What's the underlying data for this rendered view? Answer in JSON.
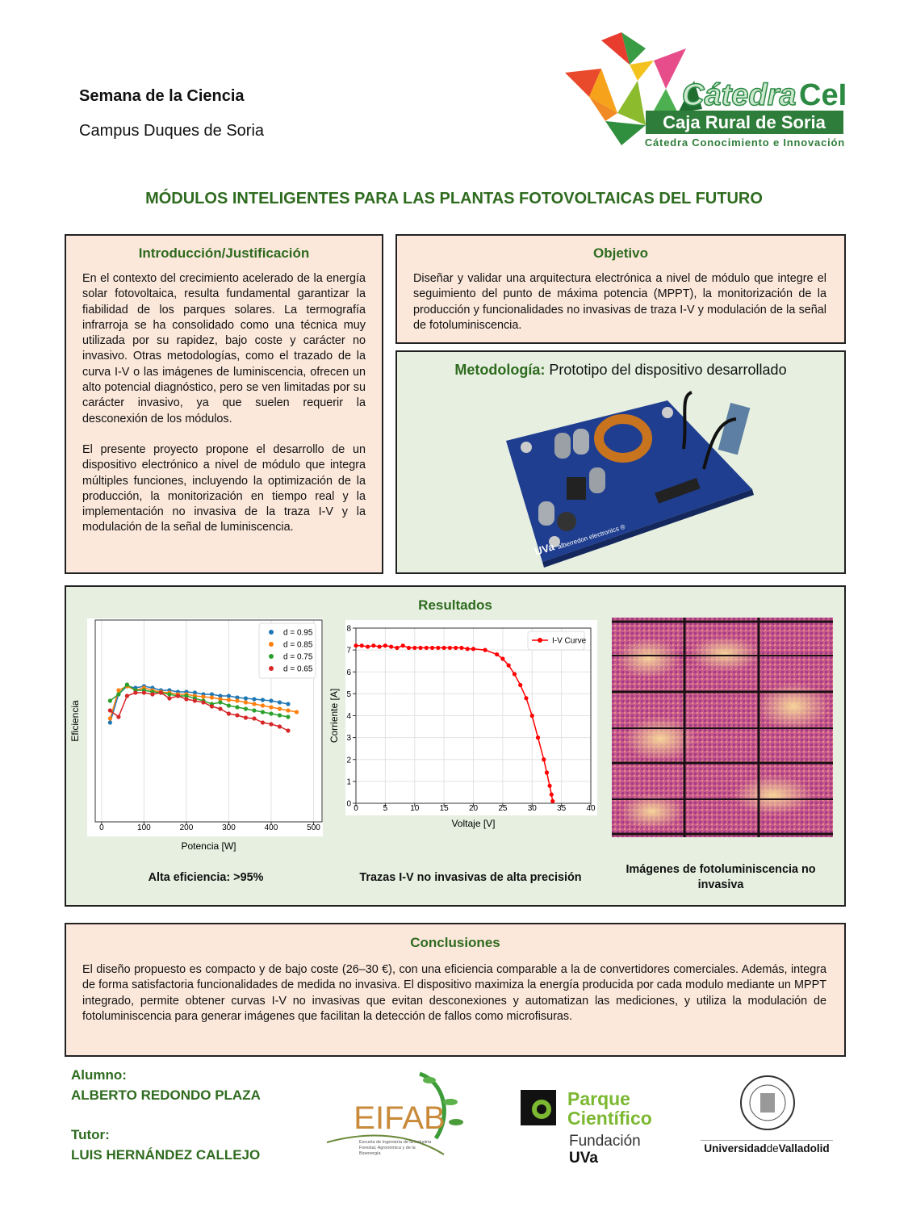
{
  "header": {
    "event": "Semana de la Ciencia",
    "campus": "Campus Duques de Soria"
  },
  "logo": {
    "word": "Cátedra",
    "initials": "CeI",
    "bank": "Caja Rural de Soria",
    "tagline": "Cátedra Conocimiento e Innovación"
  },
  "title": "MÓDULOS INTELIGENTES PARA LAS PLANTAS FOTOVOLTAICAS DEL FUTURO",
  "introduction": {
    "heading": "Introducción/Justificación",
    "paragraphs": [
      "En el contexto del crecimiento acelerado de la energía solar fotovoltaica, resulta fundamental garantizar la fiabilidad de los parques solares. La termografía infrarroja se ha consolidado como una técnica muy utilizada por su rapidez, bajo coste y carácter no invasivo. Otras metodologías, como el trazado de la curva I-V o las imágenes de luminiscencia, ofrecen un alto potencial diagnóstico, pero se ven limitadas por su carácter invasivo, ya que suelen requerir la desconexión de los módulos.",
      "El presente proyecto propone el desarrollo de un dispositivo electrónico a nivel de módulo que integra múltiples funciones, incluyendo la optimización de la producción, la monitorización en tiempo real y la implementación no invasiva de la traza I-V y la modulación de la señal de luminiscencia."
    ]
  },
  "objective": {
    "heading": "Objetivo",
    "text": "Diseñar y validar una arquitectura electrónica a nivel de módulo que integre el seguimiento del punto de máxima potencia (MPPT), la monitorización de la producción y funcionalidades no invasivas de traza I-V y modulación de la señal de fotoluminiscencia."
  },
  "methodology": {
    "heading": "Metodología:",
    "subtitle": "Prototipo del dispositivo desarrollado",
    "board_labels": [
      "UVa",
      "alberredon electronics ®"
    ]
  },
  "results": {
    "heading": "Resultados",
    "captions": [
      "Alta eficiencia: >95%",
      "Trazas I-V no invasivas de alta precisión",
      "Imágenes de fotoluminiscencia no invasiva"
    ]
  },
  "chart_data": [
    {
      "type": "line",
      "xlabel": "Potencia [W]",
      "ylabel": "Eficiencia",
      "x": [
        20,
        40,
        60,
        80,
        100,
        120,
        140,
        160,
        180,
        200,
        220,
        240,
        260,
        280,
        300,
        320,
        340,
        360,
        380,
        400,
        420,
        440,
        460
      ],
      "xlim": [
        -15,
        520
      ],
      "xticks": [
        0,
        100,
        200,
        300,
        400,
        500
      ],
      "ylim": [
        0.9,
        1.0
      ],
      "grid": true,
      "legend": "upper right",
      "legend_style": "markers",
      "series": [
        {
          "name": "d = 0.95",
          "color": "#1f77b4",
          "values": [
            0.9492,
            0.9632,
            0.9672,
            0.9664,
            0.9672,
            0.9664,
            0.9652,
            0.9652,
            0.9644,
            0.9644,
            0.964,
            0.9632,
            0.9632,
            0.9624,
            0.9624,
            0.9616,
            0.9612,
            0.9608,
            0.9604,
            0.96,
            0.9592,
            0.9584,
            null
          ]
        },
        {
          "name": "d = 0.85",
          "color": "#ff7f0e",
          "values": [
            0.9512,
            0.9652,
            0.9672,
            0.9652,
            0.9664,
            0.9652,
            0.9644,
            0.964,
            0.9632,
            0.9632,
            0.9624,
            0.962,
            0.9616,
            0.9608,
            0.9604,
            0.96,
            0.9592,
            0.9584,
            0.9576,
            0.9568,
            0.956,
            0.9552,
            0.9544
          ]
        },
        {
          "name": "d = 0.75",
          "color": "#2ca02c",
          "values": [
            0.96,
            0.9632,
            0.968,
            0.9652,
            0.9652,
            0.9644,
            0.964,
            0.9632,
            0.9624,
            0.9624,
            0.9612,
            0.96,
            0.9584,
            0.9592,
            0.9576,
            0.9568,
            0.956,
            0.9552,
            0.9544,
            0.9536,
            0.9528,
            0.952,
            null
          ]
        },
        {
          "name": "d = 0.65",
          "color": "#d62728",
          "values": [
            0.9552,
            0.952,
            0.9624,
            0.964,
            0.964,
            0.9632,
            0.964,
            0.9612,
            0.9624,
            0.9608,
            0.96,
            0.9592,
            0.9572,
            0.956,
            0.9536,
            0.9528,
            0.9516,
            0.9512,
            0.9492,
            0.9484,
            0.9472,
            0.9452,
            null
          ]
        }
      ]
    },
    {
      "type": "line",
      "xlabel": "Voltaje [V]",
      "ylabel": "Corriente [A]",
      "x": [
        0,
        1,
        2,
        3,
        4,
        5,
        6,
        7,
        8,
        9,
        10,
        11,
        12,
        13,
        14,
        15,
        16,
        17,
        18,
        19,
        20,
        22,
        24,
        25,
        26,
        27,
        28,
        29,
        30,
        31,
        32,
        32.5,
        33,
        33.3,
        33.5
      ],
      "xlim": [
        0,
        40
      ],
      "xticks": [
        0,
        5,
        10,
        15,
        20,
        25,
        30,
        35,
        40
      ],
      "ylim": [
        0,
        8
      ],
      "yticks": [
        0,
        1,
        2,
        3,
        4,
        5,
        6,
        7,
        8
      ],
      "grid": true,
      "legend": "upper right",
      "legend_style": "line",
      "series": [
        {
          "name": "I-V Curve",
          "color": "#ff0000",
          "values": [
            7.2,
            7.2,
            7.15,
            7.2,
            7.15,
            7.2,
            7.15,
            7.1,
            7.2,
            7.1,
            7.1,
            7.1,
            7.1,
            7.1,
            7.1,
            7.1,
            7.1,
            7.1,
            7.1,
            7.05,
            7.05,
            7.0,
            6.8,
            6.6,
            6.3,
            5.9,
            5.4,
            4.8,
            4.0,
            3.0,
            2.0,
            1.4,
            0.8,
            0.4,
            0.1
          ]
        }
      ]
    }
  ],
  "conclusions": {
    "heading": "Conclusiones",
    "text": "El diseño propuesto es compacto y de bajo coste (26–30 €), con una eficiencia comparable a la de convertidores comerciales. Además, integra de forma satisfactoria funcionalidades de medida no invasiva. El dispositivo maximiza la energía producida por cada modulo mediante un MPPT integrado, permite obtener curvas I-V no invasivas que evitan desconexiones y automatizan las mediciones, y utiliza la modulación de fotoluminiscencia para generar imágenes que facilitan la detección de fallos como microfisuras."
  },
  "footer": {
    "student_label": "Alumno:",
    "student": "ALBERTO REDONDO PLAZA",
    "tutor_label": "Tutor:",
    "tutor": "LUIS HERNÁNDEZ CALLEJO",
    "logos": {
      "eifab": "EIFAB",
      "eifab_school": "Escuela de Ingeniería de la Industria Forestal, Agronómica y de la Bioenergía",
      "park": [
        "Parque",
        "Científico"
      ],
      "foundation": [
        "Fundación",
        "UVa"
      ],
      "university": [
        "Universidad",
        "de",
        "Valladolid"
      ]
    }
  }
}
